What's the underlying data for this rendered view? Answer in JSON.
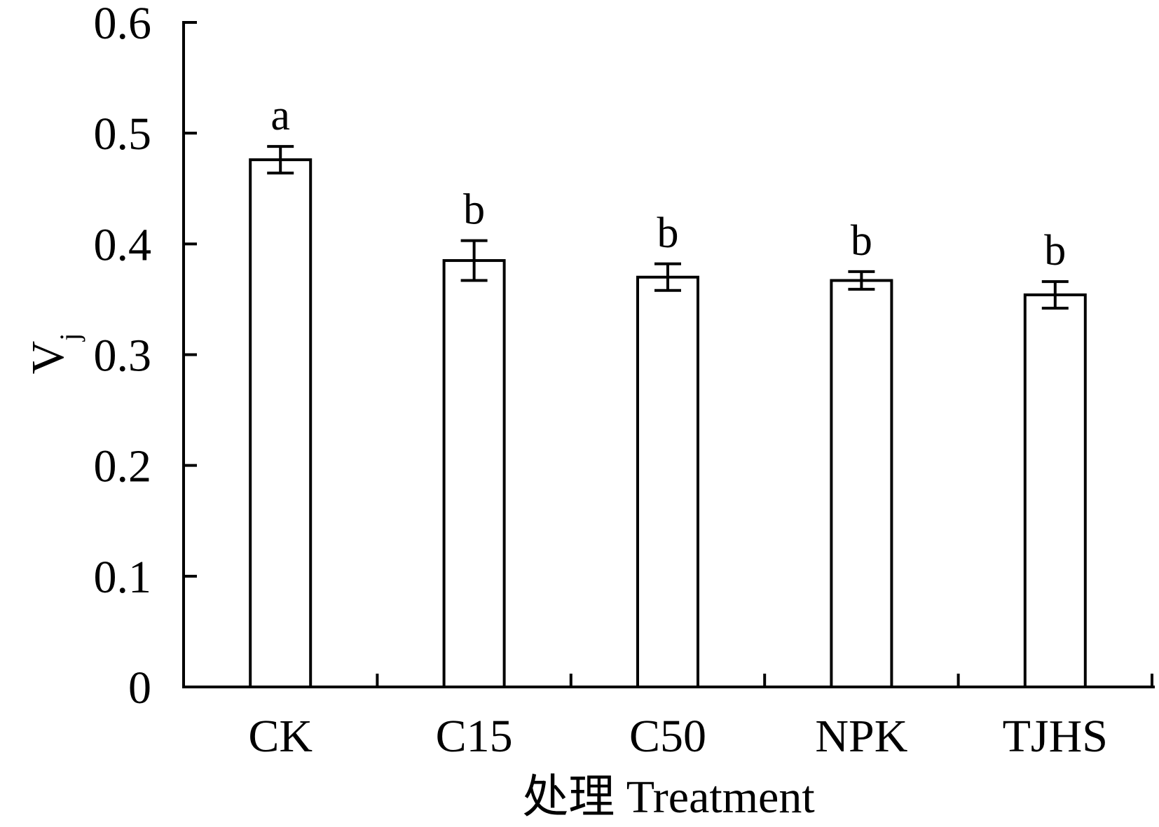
{
  "chart_data": {
    "type": "bar",
    "categories": [
      "CK",
      "C15",
      "C50",
      "NPK",
      "TJHS"
    ],
    "values": [
      0.476,
      0.385,
      0.37,
      0.367,
      0.354
    ],
    "errors": [
      0.012,
      0.018,
      0.012,
      0.008,
      0.012
    ],
    "significance_letters": [
      "a",
      "b",
      "b",
      "b",
      "b"
    ],
    "xlabel": "处理 Treatment",
    "ylabel": "V",
    "ylabel_subscript": "j",
    "ylim": [
      0,
      0.6
    ],
    "yticks": [
      0,
      0.1,
      0.2,
      0.3,
      0.4,
      0.5,
      0.6
    ],
    "ytick_labels": [
      "0",
      "0.1",
      "0.2",
      "0.3",
      "0.4",
      "0.5",
      "0.6"
    ],
    "grid": false,
    "bar_fill": "#ffffff",
    "stroke_color": "#000000"
  }
}
